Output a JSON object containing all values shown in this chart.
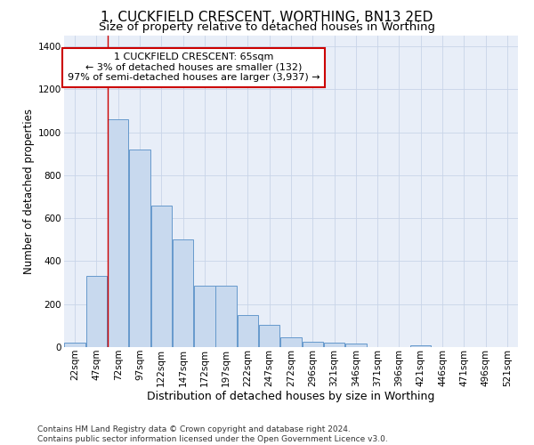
{
  "title": "1, CUCKFIELD CRESCENT, WORTHING, BN13 2ED",
  "subtitle": "Size of property relative to detached houses in Worthing",
  "xlabel": "Distribution of detached houses by size in Worthing",
  "ylabel": "Number of detached properties",
  "bar_labels": [
    "22sqm",
    "47sqm",
    "72sqm",
    "97sqm",
    "122sqm",
    "147sqm",
    "172sqm",
    "197sqm",
    "222sqm",
    "247sqm",
    "272sqm",
    "296sqm",
    "321sqm",
    "346sqm",
    "371sqm",
    "396sqm",
    "421sqm",
    "446sqm",
    "471sqm",
    "496sqm",
    "521sqm"
  ],
  "bar_values": [
    20,
    330,
    1060,
    920,
    660,
    500,
    285,
    285,
    150,
    105,
    45,
    25,
    20,
    15,
    0,
    0,
    10,
    0,
    0,
    0,
    0
  ],
  "bar_color": "#c8d9ee",
  "bar_edge_color": "#6699cc",
  "vline_color": "#cc0000",
  "vline_x": 1.5,
  "annotation_text": "1 CUCKFIELD CRESCENT: 65sqm\n← 3% of detached houses are smaller (132)\n97% of semi-detached houses are larger (3,937) →",
  "annotation_box_color": "white",
  "annotation_box_edge_color": "#cc0000",
  "ylim": [
    0,
    1450
  ],
  "yticks": [
    0,
    200,
    400,
    600,
    800,
    1000,
    1200,
    1400
  ],
  "grid_color": "#c8d4e8",
  "background_color": "#e8eef8",
  "footer": "Contains HM Land Registry data © Crown copyright and database right 2024.\nContains public sector information licensed under the Open Government Licence v3.0.",
  "title_fontsize": 11,
  "subtitle_fontsize": 9.5,
  "xlabel_fontsize": 9,
  "ylabel_fontsize": 8.5,
  "tick_fontsize": 7.5,
  "annotation_fontsize": 8,
  "footer_fontsize": 6.5
}
